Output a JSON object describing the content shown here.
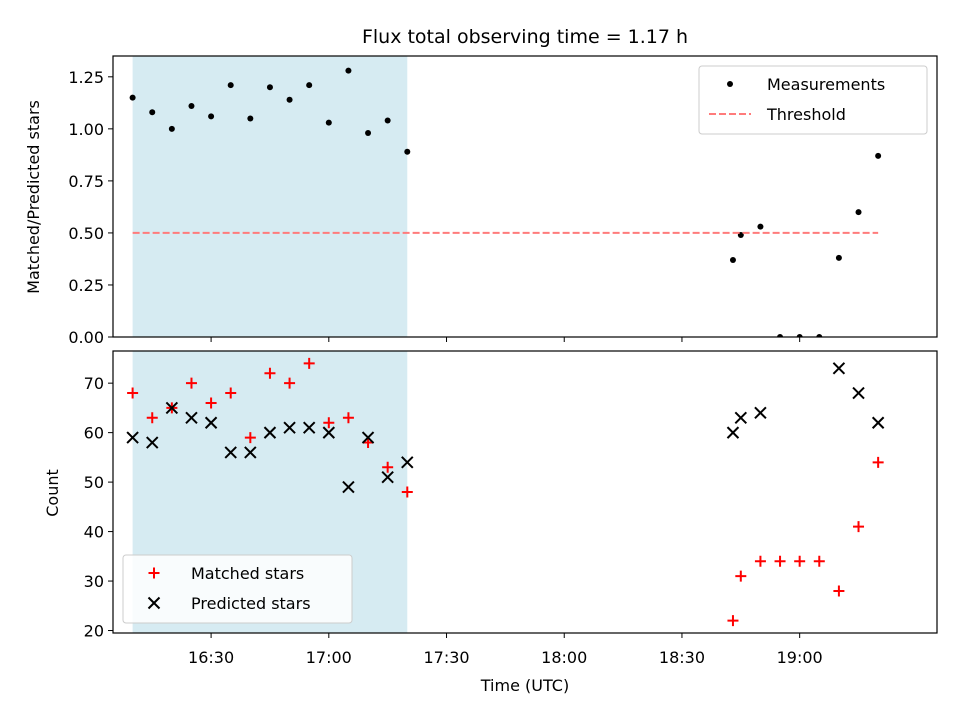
{
  "figure": {
    "title": "Flux total observing time = 1.17 h",
    "xlabel": "Time (UTC)",
    "x_ticks": [
      "16:30",
      "17:00",
      "17:30",
      "18:00",
      "18:30",
      "19:00"
    ]
  },
  "chart_data": [
    {
      "type": "scatter",
      "ylabel": "Matched/Predicted stars",
      "ylim": [
        0.0,
        1.35
      ],
      "y_ticks": [
        "0.00",
        "0.25",
        "0.50",
        "0.75",
        "1.00",
        "1.25"
      ],
      "x_range": [
        "16:05",
        "19:35"
      ],
      "shaded_interval": {
        "start": "16:10",
        "end": "17:20",
        "color": "#add8e6"
      },
      "legend_position": "top-right",
      "series": [
        {
          "name": "Measurements",
          "marker": "dot",
          "color": "#000000",
          "points": [
            {
              "x": "16:10",
              "y": 1.15
            },
            {
              "x": "16:15",
              "y": 1.08
            },
            {
              "x": "16:20",
              "y": 1.0
            },
            {
              "x": "16:25",
              "y": 1.11
            },
            {
              "x": "16:30",
              "y": 1.06
            },
            {
              "x": "16:35",
              "y": 1.21
            },
            {
              "x": "16:40",
              "y": 1.05
            },
            {
              "x": "16:45",
              "y": 1.2
            },
            {
              "x": "16:50",
              "y": 1.14
            },
            {
              "x": "16:55",
              "y": 1.21
            },
            {
              "x": "17:00",
              "y": 1.03
            },
            {
              "x": "17:05",
              "y": 1.28
            },
            {
              "x": "17:10",
              "y": 0.98
            },
            {
              "x": "17:15",
              "y": 1.04
            },
            {
              "x": "17:20",
              "y": 0.89
            },
            {
              "x": "18:43",
              "y": 0.37
            },
            {
              "x": "18:45",
              "y": 0.49
            },
            {
              "x": "18:50",
              "y": 0.53
            },
            {
              "x": "18:55",
              "y": 0.0
            },
            {
              "x": "19:00",
              "y": 0.0
            },
            {
              "x": "19:05",
              "y": 0.0
            },
            {
              "x": "19:10",
              "y": 0.38
            },
            {
              "x": "19:15",
              "y": 0.6
            },
            {
              "x": "19:20",
              "y": 0.87
            }
          ]
        },
        {
          "name": "Threshold",
          "style": "dashed-line",
          "color": "#ff7b7b",
          "points": [
            {
              "x": "16:10",
              "y": 0.5
            },
            {
              "x": "19:20",
              "y": 0.5
            }
          ]
        }
      ]
    },
    {
      "type": "scatter",
      "ylabel": "Count",
      "ylim": [
        19.5,
        76.5
      ],
      "y_ticks": [
        "20",
        "30",
        "40",
        "50",
        "60",
        "70"
      ],
      "x_range": [
        "16:05",
        "19:35"
      ],
      "shaded_interval": {
        "start": "16:10",
        "end": "17:20",
        "color": "#add8e6"
      },
      "legend_position": "bottom-left",
      "series": [
        {
          "name": "Matched stars",
          "marker": "plus",
          "color": "#ff0000",
          "points": [
            {
              "x": "16:10",
              "y": 68
            },
            {
              "x": "16:15",
              "y": 63
            },
            {
              "x": "16:20",
              "y": 65
            },
            {
              "x": "16:25",
              "y": 70
            },
            {
              "x": "16:30",
              "y": 66
            },
            {
              "x": "16:35",
              "y": 68
            },
            {
              "x": "16:40",
              "y": 59
            },
            {
              "x": "16:45",
              "y": 72
            },
            {
              "x": "16:50",
              "y": 70
            },
            {
              "x": "16:55",
              "y": 74
            },
            {
              "x": "17:00",
              "y": 62
            },
            {
              "x": "17:05",
              "y": 63
            },
            {
              "x": "17:10",
              "y": 58
            },
            {
              "x": "17:15",
              "y": 53
            },
            {
              "x": "17:20",
              "y": 48
            },
            {
              "x": "18:43",
              "y": 22
            },
            {
              "x": "18:45",
              "y": 31
            },
            {
              "x": "18:50",
              "y": 34
            },
            {
              "x": "18:55",
              "y": 34
            },
            {
              "x": "19:00",
              "y": 34
            },
            {
              "x": "19:05",
              "y": 34
            },
            {
              "x": "19:10",
              "y": 28
            },
            {
              "x": "19:15",
              "y": 41
            },
            {
              "x": "19:20",
              "y": 54
            }
          ]
        },
        {
          "name": "Predicted stars",
          "marker": "x",
          "color": "#000000",
          "points": [
            {
              "x": "16:10",
              "y": 59
            },
            {
              "x": "16:15",
              "y": 58
            },
            {
              "x": "16:20",
              "y": 65
            },
            {
              "x": "16:25",
              "y": 63
            },
            {
              "x": "16:30",
              "y": 62
            },
            {
              "x": "16:35",
              "y": 56
            },
            {
              "x": "16:40",
              "y": 56
            },
            {
              "x": "16:45",
              "y": 60
            },
            {
              "x": "16:50",
              "y": 61
            },
            {
              "x": "16:55",
              "y": 61
            },
            {
              "x": "17:00",
              "y": 60
            },
            {
              "x": "17:05",
              "y": 49
            },
            {
              "x": "17:10",
              "y": 59
            },
            {
              "x": "17:15",
              "y": 51
            },
            {
              "x": "17:20",
              "y": 54
            },
            {
              "x": "18:43",
              "y": 60
            },
            {
              "x": "18:45",
              "y": 63
            },
            {
              "x": "18:50",
              "y": 64
            },
            {
              "x": "19:10",
              "y": 73
            },
            {
              "x": "19:15",
              "y": 68
            },
            {
              "x": "19:20",
              "y": 62
            }
          ]
        }
      ]
    }
  ]
}
